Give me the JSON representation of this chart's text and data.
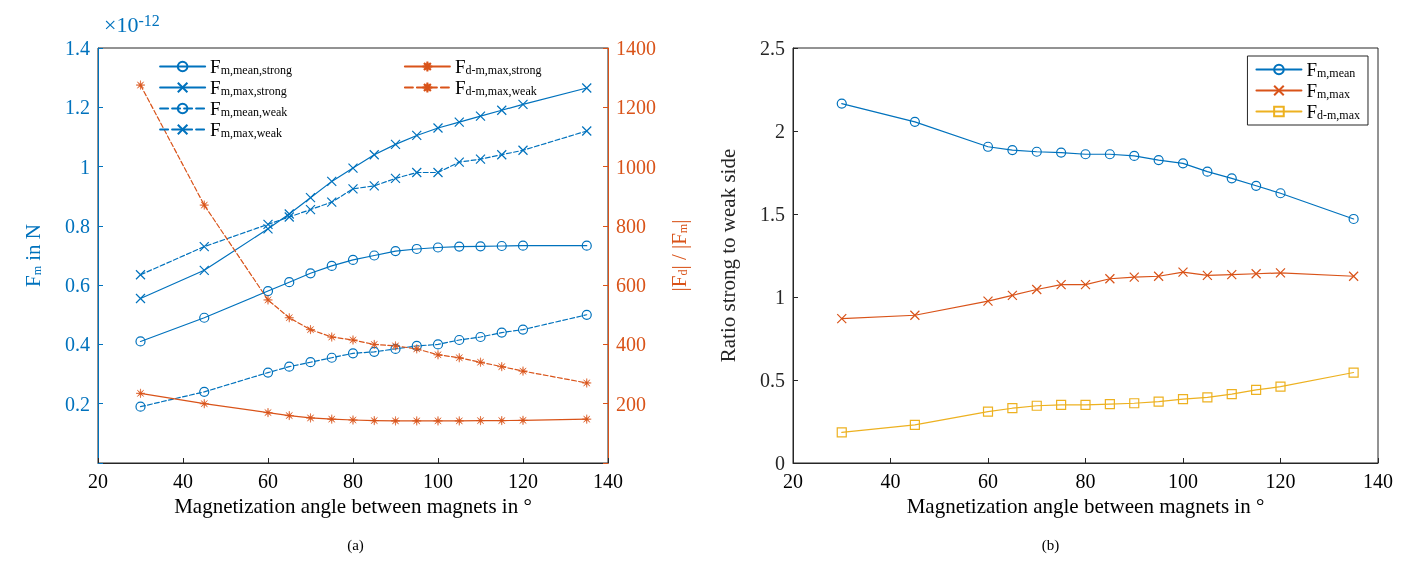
{
  "chart_data": [
    {
      "type": "line",
      "x": [
        30,
        45,
        60,
        65,
        70,
        75,
        80,
        85,
        90,
        95,
        100,
        105,
        110,
        115,
        120,
        135
      ],
      "xlim": [
        20,
        140
      ],
      "xticks": [
        20,
        40,
        60,
        80,
        100,
        120,
        140
      ],
      "ylim": [
        0,
        1.4
      ],
      "yticks": [
        {
          "value": 0,
          "label": null
        },
        0.2,
        0.4,
        0.6,
        0.8,
        1,
        1.2,
        1.4
      ],
      "y2lim": [
        0,
        1400
      ],
      "y2ticks": [
        {
          "value": 0,
          "label": null
        },
        200,
        400,
        600,
        800,
        1000,
        1200,
        1400
      ],
      "xlabel": "Magnetization angle between magnets in °",
      "ylabel": "F$_{m}$ in N",
      "y2label": "|F$_{d}$| / |F$_{m}$|",
      "legend": "top",
      "annotations": [
        "×10$^{-12}$",
        "(a)"
      ],
      "series": [
        {
          "name": "F$_{m,mean,strong}$",
          "color": "#0072bd",
          "marker": "circle",
          "line_style": "solid",
          "axis": "y",
          "values": [
            0.41,
            0.49,
            0.58,
            0.61,
            0.64,
            0.665,
            0.685,
            0.7,
            0.715,
            0.722,
            0.727,
            0.73,
            0.731,
            0.732,
            0.733,
            0.733
          ]
        },
        {
          "name": "F$_{m,max,strong}$",
          "color": "#0072bd",
          "marker": "cross",
          "line_style": "solid",
          "axis": "y",
          "values": [
            0.555,
            0.65,
            0.79,
            0.84,
            0.895,
            0.95,
            0.995,
            1.04,
            1.075,
            1.105,
            1.13,
            1.15,
            1.17,
            1.19,
            1.21,
            1.265
          ]
        },
        {
          "name": "F$_{m,mean,weak}$",
          "color": "#0072bd",
          "marker": "circle",
          "line_style": "dashed",
          "axis": "y",
          "values": [
            0.19,
            0.24,
            0.305,
            0.325,
            0.34,
            0.355,
            0.37,
            0.375,
            0.385,
            0.395,
            0.4,
            0.415,
            0.425,
            0.44,
            0.45,
            0.5
          ]
        },
        {
          "name": "F$_{m,max,weak}$",
          "color": "#0072bd",
          "marker": "cross",
          "line_style": "dashed",
          "axis": "y",
          "values": [
            0.635,
            0.73,
            0.805,
            0.83,
            0.855,
            0.88,
            0.925,
            0.935,
            0.96,
            0.98,
            0.98,
            1.015,
            1.025,
            1.04,
            1.055,
            1.12
          ]
        },
        {
          "name": "F$_{d-m,max,strong}$",
          "color": "#d95319",
          "marker": "star",
          "line_style": "solid",
          "axis": "y2",
          "values": [
            235,
            200,
            170,
            160,
            152,
            148,
            145,
            143,
            142,
            142,
            142,
            142,
            143,
            143,
            144,
            148
          ]
        },
        {
          "name": "F$_{d-m,max,weak}$",
          "color": "#d95319",
          "marker": "star",
          "line_style": "dashed",
          "axis": "y2",
          "values": [
            1275,
            870,
            550,
            490,
            450,
            425,
            415,
            400,
            395,
            385,
            365,
            355,
            340,
            325,
            310,
            270
          ]
        }
      ]
    },
    {
      "type": "line",
      "x": [
        30,
        45,
        60,
        65,
        70,
        75,
        80,
        85,
        90,
        95,
        100,
        105,
        110,
        115,
        120,
        135
      ],
      "xlim": [
        20,
        140
      ],
      "xticks": [
        20,
        40,
        60,
        80,
        100,
        120,
        140
      ],
      "ylim": [
        0,
        2.5
      ],
      "yticks": [
        0,
        0.5,
        1,
        1.5,
        2,
        2.5
      ],
      "xlabel": "Magnetization angle between magnets in °",
      "ylabel": "Ratio strong to weak side",
      "legend": "top right",
      "annotations": [
        "(b)"
      ],
      "series": [
        {
          "name": "F$_{m,mean}$",
          "color": "#0072bd",
          "marker": "circle",
          "values": [
            2.165,
            2.055,
            1.905,
            1.885,
            1.875,
            1.87,
            1.86,
            1.86,
            1.85,
            1.825,
            1.805,
            1.755,
            1.715,
            1.67,
            1.625,
            1.47
          ]
        },
        {
          "name": "F$_{m,max}$",
          "color": "#d95319",
          "marker": "cross",
          "values": [
            0.87,
            0.89,
            0.975,
            1.01,
            1.045,
            1.075,
            1.075,
            1.11,
            1.12,
            1.125,
            1.15,
            1.13,
            1.135,
            1.14,
            1.145,
            1.125
          ]
        },
        {
          "name": "F$_{d-m,max}$",
          "color": "#edb120",
          "marker": "square",
          "values": [
            0.185,
            0.23,
            0.31,
            0.33,
            0.345,
            0.35,
            0.35,
            0.355,
            0.36,
            0.37,
            0.385,
            0.395,
            0.415,
            0.44,
            0.46,
            0.545
          ]
        }
      ]
    }
  ]
}
